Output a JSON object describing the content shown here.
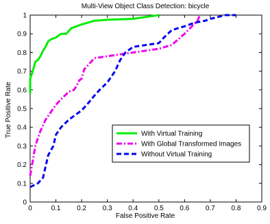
{
  "chart_data": {
    "type": "line",
    "title": "Multi-View Object Class Detection: bicycle",
    "xlabel": "False Positive Rate",
    "ylabel": "True Positive Rate",
    "xlim": [
      0,
      0.9
    ],
    "ylim": [
      0,
      1
    ],
    "xticks": [
      "0",
      "0.1",
      "0.2",
      "0.3",
      "0.4",
      "0.5",
      "0.6",
      "0.7",
      "0.8",
      "0.9"
    ],
    "yticks": [
      "0",
      "0.1",
      "0.2",
      "0.3",
      "0.4",
      "0.5",
      "0.6",
      "0.7",
      "0.8",
      "0.9",
      "1"
    ],
    "grid": false,
    "legend_position": "lower-right",
    "series": [
      {
        "name": "With Virtual Training",
        "color": "#00ee00",
        "dash": "solid",
        "points": [
          [
            0,
            0.58
          ],
          [
            0,
            0.66
          ],
          [
            0.005,
            0.68
          ],
          [
            0.01,
            0.7
          ],
          [
            0.02,
            0.75
          ],
          [
            0.03,
            0.76
          ],
          [
            0.04,
            0.78
          ],
          [
            0.05,
            0.81
          ],
          [
            0.06,
            0.83
          ],
          [
            0.07,
            0.86
          ],
          [
            0.08,
            0.87
          ],
          [
            0.1,
            0.88
          ],
          [
            0.12,
            0.9
          ],
          [
            0.14,
            0.9
          ],
          [
            0.16,
            0.93
          ],
          [
            0.2,
            0.95
          ],
          [
            0.25,
            0.97
          ],
          [
            0.3,
            0.975
          ],
          [
            0.4,
            0.98
          ],
          [
            0.45,
            0.99
          ],
          [
            0.5,
            1.0
          ]
        ]
      },
      {
        "name": "With Global Transformed Images",
        "color": "#ee00ee",
        "dash": "dashdot",
        "points": [
          [
            0,
            0.14
          ],
          [
            0.01,
            0.22
          ],
          [
            0.02,
            0.3
          ],
          [
            0.04,
            0.38
          ],
          [
            0.06,
            0.44
          ],
          [
            0.08,
            0.48
          ],
          [
            0.1,
            0.52
          ],
          [
            0.12,
            0.55
          ],
          [
            0.15,
            0.59
          ],
          [
            0.17,
            0.6
          ],
          [
            0.18,
            0.62
          ],
          [
            0.19,
            0.65
          ],
          [
            0.2,
            0.66
          ],
          [
            0.21,
            0.71
          ],
          [
            0.23,
            0.74
          ],
          [
            0.25,
            0.77
          ],
          [
            0.3,
            0.78
          ],
          [
            0.35,
            0.79
          ],
          [
            0.4,
            0.8
          ],
          [
            0.45,
            0.81
          ],
          [
            0.5,
            0.82
          ],
          [
            0.55,
            0.84
          ],
          [
            0.6,
            0.9
          ],
          [
            0.65,
            0.97
          ],
          [
            0.66,
            1.0
          ]
        ]
      },
      {
        "name": "Without Virtual Training",
        "color": "#0000ee",
        "dash": "dashed",
        "points": [
          [
            0,
            0.08
          ],
          [
            0.03,
            0.1
          ],
          [
            0.05,
            0.13
          ],
          [
            0.07,
            0.25
          ],
          [
            0.09,
            0.3
          ],
          [
            0.1,
            0.36
          ],
          [
            0.12,
            0.4
          ],
          [
            0.15,
            0.44
          ],
          [
            0.2,
            0.49
          ],
          [
            0.22,
            0.52
          ],
          [
            0.25,
            0.57
          ],
          [
            0.27,
            0.6
          ],
          [
            0.3,
            0.64
          ],
          [
            0.33,
            0.7
          ],
          [
            0.35,
            0.76
          ],
          [
            0.37,
            0.8
          ],
          [
            0.4,
            0.83
          ],
          [
            0.45,
            0.84
          ],
          [
            0.5,
            0.85
          ],
          [
            0.52,
            0.88
          ],
          [
            0.55,
            0.92
          ],
          [
            0.6,
            0.94
          ],
          [
            0.64,
            0.96
          ],
          [
            0.68,
            0.97
          ],
          [
            0.7,
            0.98
          ],
          [
            0.73,
            0.99
          ],
          [
            0.76,
            1.0
          ],
          [
            0.8,
            1.0
          ]
        ]
      }
    ]
  }
}
